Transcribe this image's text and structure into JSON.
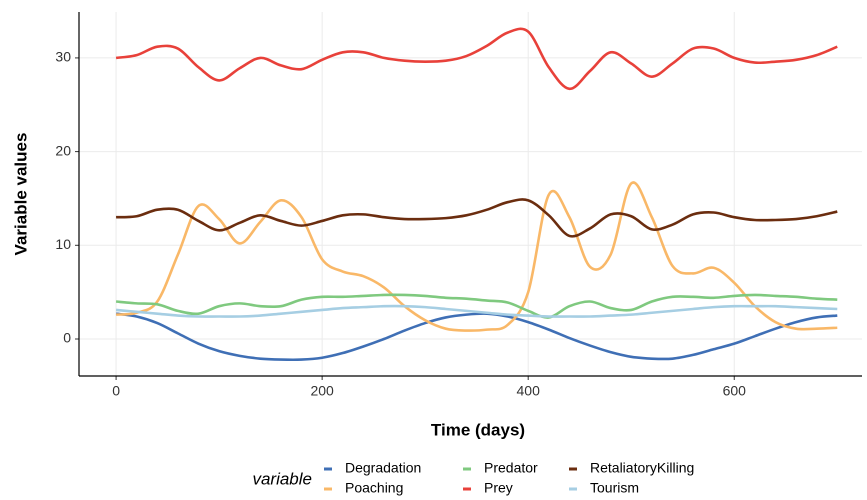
{
  "chart_data": {
    "type": "line",
    "x_label": "Time (days)",
    "y_label": "Variable values",
    "legend_title": "variable",
    "x": [
      0,
      20,
      40,
      60,
      80,
      100,
      120,
      140,
      160,
      180,
      200,
      220,
      240,
      260,
      280,
      300,
      320,
      340,
      360,
      380,
      400,
      420,
      440,
      460,
      480,
      500,
      520,
      540,
      560,
      580,
      600,
      620,
      640,
      660,
      680,
      700
    ],
    "series": [
      {
        "name": "Degradation",
        "color": "#3f6fb5",
        "values": [
          2.7,
          2.4,
          1.7,
          0.6,
          -0.5,
          -1.3,
          -1.8,
          -2.1,
          -2.2,
          -2.2,
          -2,
          -1.5,
          -0.8,
          0,
          0.9,
          1.7,
          2.3,
          2.6,
          2.7,
          2.4,
          1.8,
          1,
          0.1,
          -0.7,
          -1.4,
          -1.9,
          -2.1,
          -2.1,
          -1.7,
          -1.1,
          -0.5,
          0.3,
          1.1,
          1.8,
          2.3,
          2.5
        ]
      },
      {
        "name": "Poaching",
        "color": "#f9b868",
        "values": [
          2.6,
          2.8,
          4,
          9,
          14.2,
          12.8,
          10.2,
          12.5,
          14.8,
          13,
          8.5,
          7.2,
          6.7,
          5.5,
          3.5,
          2,
          1.1,
          0.9,
          1,
          1.5,
          5,
          15.4,
          13,
          7.7,
          9,
          16.6,
          13,
          7.8,
          7,
          7.6,
          6,
          3.5,
          1.8,
          1.1,
          1.1,
          1.2
        ]
      },
      {
        "name": "Predator",
        "color": "#7fc97f",
        "values": [
          4,
          3.8,
          3.7,
          3,
          2.7,
          3.5,
          3.8,
          3.5,
          3.5,
          4.2,
          4.5,
          4.5,
          4.6,
          4.7,
          4.7,
          4.6,
          4.4,
          4.3,
          4.1,
          3.9,
          3,
          2.3,
          3.5,
          4,
          3.3,
          3.1,
          4,
          4.5,
          4.5,
          4.4,
          4.6,
          4.7,
          4.6,
          4.5,
          4.3,
          4.2
        ]
      },
      {
        "name": "Prey",
        "color": "#e8413a",
        "values": [
          30,
          30.3,
          31.2,
          31,
          29,
          27.6,
          28.9,
          30,
          29.2,
          28.8,
          29.8,
          30.6,
          30.6,
          30,
          29.7,
          29.6,
          29.7,
          30.2,
          31.3,
          32.7,
          32.8,
          29,
          26.7,
          28.6,
          30.6,
          29.4,
          28,
          29.4,
          31,
          31,
          30,
          29.5,
          29.6,
          29.8,
          30.3,
          31.2
        ]
      },
      {
        "name": "RetaliatoryKilling",
        "color": "#6b2d0f",
        "values": [
          13,
          13.1,
          13.8,
          13.8,
          12.6,
          11.6,
          12.4,
          13.2,
          12.6,
          12.1,
          12.6,
          13.2,
          13.3,
          13,
          12.8,
          12.8,
          12.9,
          13.2,
          13.8,
          14.6,
          14.8,
          13.2,
          11,
          11.8,
          13.3,
          13.1,
          11.7,
          12.2,
          13.3,
          13.5,
          13,
          12.7,
          12.7,
          12.8,
          13.1,
          13.6
        ]
      },
      {
        "name": "Tourism",
        "color": "#a6cee3",
        "values": [
          3.1,
          2.9,
          2.7,
          2.5,
          2.4,
          2.4,
          2.4,
          2.5,
          2.7,
          2.9,
          3.1,
          3.3,
          3.4,
          3.5,
          3.5,
          3.4,
          3.2,
          3,
          2.8,
          2.6,
          2.5,
          2.4,
          2.4,
          2.4,
          2.5,
          2.6,
          2.8,
          3,
          3.2,
          3.4,
          3.5,
          3.5,
          3.5,
          3.4,
          3.3,
          3.2
        ]
      }
    ],
    "xlim": [
      -36,
      724
    ],
    "ylim": [
      -3.95,
      34.9
    ],
    "xticks": [
      0,
      200,
      400,
      600
    ],
    "yticks": [
      0,
      10,
      20,
      30
    ],
    "grid": true
  }
}
